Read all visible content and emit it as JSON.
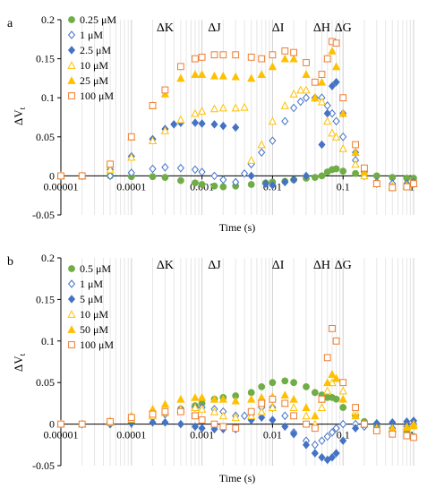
{
  "chart_data": [
    {
      "panel_label": "a",
      "type": "scatter",
      "xscale": "log",
      "xlim": [
        1e-05,
        1
      ],
      "ylim": [
        -0.05,
        0.2
      ],
      "xlabel": "Time (s)",
      "ylabel": "ΔV",
      "ylabel_sub": "t",
      "x_tick_labels": [
        "0.00001",
        "0.0001",
        "0.001",
        "0.01",
        "0.1",
        "1"
      ],
      "y_tick_labels": [
        "-0.05",
        "0",
        "0.05",
        "0.1",
        "0.15",
        "0.2"
      ],
      "y_ticks": [
        -0.05,
        0,
        0.05,
        0.1,
        0.15,
        0.2
      ],
      "grid": "vertical-minor",
      "legend_position": "top-left",
      "phase_labels": [
        {
          "text": "ΔK",
          "x": 0.0003
        },
        {
          "text": "ΔJ",
          "x": 0.0015
        },
        {
          "text": "ΔI",
          "x": 0.012
        },
        {
          "text": "ΔH",
          "x": 0.05
        },
        {
          "text": "ΔG",
          "x": 0.1
        }
      ],
      "series": [
        {
          "name": "0.25 μM",
          "marker": "circle",
          "color": "#70ad47",
          "fill": "#70ad47",
          "x": [
            1e-05,
            2e-05,
            5e-05,
            0.0001,
            0.0002,
            0.0003,
            0.0005,
            0.0008,
            0.001,
            0.0015,
            0.002,
            0.003,
            0.005,
            0.008,
            0.01,
            0.015,
            0.02,
            0.03,
            0.04,
            0.05,
            0.06,
            0.07,
            0.08,
            0.1,
            0.15,
            0.2,
            0.3,
            0.5,
            0.8,
            1
          ],
          "y": [
            0,
            0,
            0,
            -0.001,
            -0.001,
            -0.002,
            -0.006,
            -0.009,
            -0.011,
            -0.013,
            -0.014,
            -0.013,
            -0.011,
            -0.009,
            -0.008,
            -0.007,
            -0.005,
            -0.003,
            -0.002,
            0,
            0.005,
            0.008,
            0.009,
            0.006,
            0.003,
            0.001,
            0,
            -0.002,
            -0.003,
            -0.003
          ]
        },
        {
          "name": "1 μM",
          "marker": "diamond-open",
          "color": "#4472c4",
          "fill": "none",
          "x": [
            1e-05,
            2e-05,
            5e-05,
            0.0001,
            0.0002,
            0.0003,
            0.0005,
            0.0008,
            0.001,
            0.0015,
            0.002,
            0.003,
            0.004,
            0.005,
            0.007,
            0.01,
            0.015,
            0.02,
            0.025,
            0.03,
            0.04,
            0.05,
            0.06,
            0.07,
            0.08,
            0.1,
            0.15,
            0.2,
            0.3,
            0.5,
            0.8,
            1
          ],
          "y": [
            0,
            0,
            0,
            0.004,
            0.009,
            0.011,
            0.01,
            0.008,
            0.005,
            0.0,
            -0.005,
            -0.008,
            0.003,
            0.015,
            0.03,
            0.045,
            0.07,
            0.087,
            0.095,
            0.1,
            0.1,
            0.1,
            0.09,
            0.08,
            0.07,
            0.05,
            0.02,
            0.0,
            -0.008,
            -0.01,
            -0.01,
            -0.008
          ]
        },
        {
          "name": "2.5 μM",
          "marker": "diamond",
          "color": "#4472c4",
          "fill": "#4472c4",
          "x": [
            1e-05,
            2e-05,
            5e-05,
            0.0001,
            0.0002,
            0.0003,
            0.0004,
            0.0005,
            0.0008,
            0.001,
            0.0015,
            0.002,
            0.003,
            0.005,
            0.008,
            0.01,
            0.015,
            0.02,
            0.03,
            0.05,
            0.06,
            0.07,
            0.08,
            0.1,
            0.15,
            0.2,
            0.3,
            0.5,
            0.8,
            1
          ],
          "y": [
            0,
            0,
            0.008,
            0.025,
            0.047,
            0.06,
            0.066,
            0.068,
            0.068,
            0.067,
            0.066,
            0.064,
            0.062,
            0.0,
            -0.01,
            -0.012,
            -0.008,
            -0.005,
            0.0,
            0.04,
            0.08,
            0.115,
            0.12,
            0.08,
            0.03,
            0.005,
            -0.01,
            -0.014,
            -0.012,
            -0.01
          ]
        },
        {
          "name": "10 μM",
          "marker": "triangle-open",
          "color": "#ffc000",
          "fill": "none",
          "x": [
            1e-05,
            2e-05,
            5e-05,
            0.0001,
            0.0002,
            0.0003,
            0.0005,
            0.0008,
            0.001,
            0.0015,
            0.002,
            0.003,
            0.004,
            0.005,
            0.007,
            0.01,
            0.015,
            0.02,
            0.025,
            0.03,
            0.04,
            0.05,
            0.06,
            0.07,
            0.08,
            0.1,
            0.15,
            0.2,
            0.3,
            0.5,
            0.8,
            1
          ],
          "y": [
            0,
            0,
            0.008,
            0.024,
            0.045,
            0.058,
            0.072,
            0.08,
            0.083,
            0.086,
            0.087,
            0.087,
            0.088,
            0.02,
            0.04,
            0.07,
            0.09,
            0.105,
            0.11,
            0.11,
            0.1,
            0.095,
            0.07,
            0.055,
            0.05,
            0.035,
            0.015,
            0.0,
            -0.01,
            -0.013,
            -0.012,
            -0.01
          ]
        },
        {
          "name": "25 μM",
          "marker": "triangle",
          "color": "#ffc000",
          "fill": "#ffc000",
          "x": [
            1e-05,
            2e-05,
            5e-05,
            0.0001,
            0.0002,
            0.0003,
            0.0005,
            0.0008,
            0.001,
            0.0015,
            0.002,
            0.003,
            0.005,
            0.007,
            0.01,
            0.015,
            0.02,
            0.03,
            0.04,
            0.05,
            0.06,
            0.07,
            0.08,
            0.1,
            0.15,
            0.2,
            0.3,
            0.5,
            0.8,
            1
          ],
          "y": [
            0,
            0,
            0.015,
            0.05,
            0.09,
            0.105,
            0.125,
            0.13,
            0.13,
            0.128,
            0.128,
            0.127,
            0.125,
            0.13,
            0.14,
            0.15,
            0.15,
            0.13,
            0.1,
            0.12,
            0.15,
            0.16,
            0.14,
            0.08,
            0.03,
            0.005,
            -0.01,
            -0.015,
            -0.013,
            -0.01
          ]
        },
        {
          "name": "100 μM",
          "marker": "square-open",
          "color": "#ed7d31",
          "fill": "none",
          "x": [
            1e-05,
            2e-05,
            5e-05,
            0.0001,
            0.0002,
            0.0003,
            0.0005,
            0.0008,
            0.001,
            0.0015,
            0.002,
            0.003,
            0.005,
            0.007,
            0.01,
            0.015,
            0.02,
            0.03,
            0.04,
            0.05,
            0.06,
            0.07,
            0.08,
            0.1,
            0.15,
            0.2,
            0.3,
            0.5,
            0.8,
            1
          ],
          "y": [
            0,
            0,
            0.015,
            0.05,
            0.09,
            0.11,
            0.14,
            0.15,
            0.152,
            0.155,
            0.155,
            0.155,
            0.152,
            0.15,
            0.155,
            0.16,
            0.158,
            0.145,
            0.12,
            0.13,
            0.15,
            0.172,
            0.17,
            0.1,
            0.04,
            0.01,
            -0.01,
            -0.015,
            -0.014,
            -0.01
          ]
        }
      ]
    },
    {
      "panel_label": "b",
      "type": "scatter",
      "xscale": "log",
      "xlim": [
        1e-05,
        1
      ],
      "ylim": [
        -0.05,
        0.2
      ],
      "xlabel": "Time (s)",
      "ylabel": "ΔV",
      "ylabel_sub": "t",
      "x_tick_labels": [
        "0.00001",
        "0.0001",
        "0.001",
        "0.01",
        "0.1",
        "1"
      ],
      "y_tick_labels": [
        "-0.05",
        "0",
        "0.05",
        "0.1",
        "0.15",
        "0.2"
      ],
      "y_ticks": [
        -0.05,
        0,
        0.05,
        0.1,
        0.15,
        0.2
      ],
      "grid": "vertical-minor",
      "legend_position": "top-left",
      "phase_labels": [
        {
          "text": "ΔK",
          "x": 0.0003
        },
        {
          "text": "ΔJ",
          "x": 0.0015
        },
        {
          "text": "ΔI",
          "x": 0.012
        },
        {
          "text": "ΔH",
          "x": 0.05
        },
        {
          "text": "ΔG",
          "x": 0.1
        }
      ],
      "series": [
        {
          "name": "0.5 μM",
          "marker": "circle",
          "color": "#70ad47",
          "fill": "#70ad47",
          "x": [
            1e-05,
            2e-05,
            5e-05,
            0.0001,
            0.0002,
            0.0003,
            0.0005,
            0.0008,
            0.001,
            0.0015,
            0.002,
            0.003,
            0.005,
            0.007,
            0.01,
            0.015,
            0.02,
            0.03,
            0.04,
            0.05,
            0.06,
            0.07,
            0.08,
            0.1,
            0.15,
            0.2,
            0.3,
            0.5,
            0.8,
            1
          ],
          "y": [
            0,
            0,
            0.002,
            0.006,
            0.01,
            0.013,
            0.018,
            0.022,
            0.025,
            0.03,
            0.032,
            0.034,
            0.038,
            0.045,
            0.05,
            0.052,
            0.05,
            0.045,
            0.038,
            0.035,
            0.032,
            0.032,
            0.03,
            0.02,
            0.01,
            0.003,
            -0.003,
            -0.008,
            -0.01,
            -0.015
          ]
        },
        {
          "name": "1 μM",
          "marker": "diamond-open",
          "color": "#4472c4",
          "fill": "none",
          "x": [
            1e-05,
            2e-05,
            5e-05,
            0.0001,
            0.0002,
            0.0003,
            0.0005,
            0.0008,
            0.001,
            0.0015,
            0.002,
            0.003,
            0.004,
            0.005,
            0.007,
            0.01,
            0.015,
            0.02,
            0.03,
            0.04,
            0.05,
            0.06,
            0.07,
            0.08,
            0.1,
            0.15,
            0.2,
            0.3,
            0.5,
            0.8,
            1
          ],
          "y": [
            0,
            0,
            0,
            0.003,
            0.008,
            0.012,
            0.018,
            0.02,
            0.02,
            0.018,
            0.015,
            0.01,
            0.01,
            0.012,
            0.02,
            0.02,
            0.01,
            -0.01,
            -0.02,
            -0.025,
            -0.02,
            -0.015,
            -0.01,
            -0.005,
            0.0,
            0.0,
            -0.003,
            -0.005,
            -0.005,
            -0.003,
            0
          ]
        },
        {
          "name": "5 μM",
          "marker": "diamond",
          "color": "#4472c4",
          "fill": "#4472c4",
          "x": [
            1e-05,
            2e-05,
            5e-05,
            0.0001,
            0.0002,
            0.0003,
            0.0005,
            0.0008,
            0.001,
            0.0015,
            0.002,
            0.003,
            0.005,
            0.007,
            0.01,
            0.015,
            0.02,
            0.03,
            0.04,
            0.05,
            0.06,
            0.07,
            0.08,
            0.1,
            0.15,
            0.2,
            0.3,
            0.5,
            0.8,
            1
          ],
          "y": [
            0,
            0,
            0,
            0.001,
            0.002,
            0.002,
            0.0,
            -0.003,
            -0.005,
            -0.006,
            -0.006,
            -0.006,
            0.005,
            0.008,
            0.005,
            -0.003,
            -0.012,
            -0.025,
            -0.035,
            -0.04,
            -0.043,
            -0.04,
            -0.035,
            -0.02,
            -0.005,
            0.0,
            0.001,
            0.002,
            0.003,
            0.004
          ]
        },
        {
          "name": "10 μM",
          "marker": "triangle-open",
          "color": "#ffc000",
          "fill": "none",
          "x": [
            1e-05,
            2e-05,
            5e-05,
            0.0001,
            0.0002,
            0.0003,
            0.0005,
            0.0008,
            0.001,
            0.0015,
            0.002,
            0.003,
            0.005,
            0.007,
            0.01,
            0.015,
            0.02,
            0.03,
            0.04,
            0.05,
            0.06,
            0.07,
            0.08,
            0.1,
            0.15,
            0.2,
            0.3,
            0.5,
            0.8,
            1
          ],
          "y": [
            0,
            0,
            0.002,
            0.006,
            0.01,
            0.014,
            0.018,
            0.02,
            0.018,
            0.015,
            0.01,
            0.008,
            0.01,
            0.015,
            0.02,
            0.025,
            0.02,
            0.01,
            0.0,
            0.02,
            0.04,
            0.05,
            0.055,
            0.04,
            0.015,
            0.0,
            -0.005,
            -0.005,
            -0.003,
            0.0
          ]
        },
        {
          "name": "50 μM",
          "marker": "triangle",
          "color": "#ffc000",
          "fill": "#ffc000",
          "x": [
            1e-05,
            2e-05,
            5e-05,
            0.0001,
            0.0002,
            0.0003,
            0.0005,
            0.0008,
            0.001,
            0.0015,
            0.002,
            0.003,
            0.005,
            0.007,
            0.01,
            0.015,
            0.02,
            0.03,
            0.04,
            0.05,
            0.06,
            0.07,
            0.08,
            0.1,
            0.15,
            0.2,
            0.3,
            0.5,
            0.8,
            1
          ],
          "y": [
            0,
            0,
            0.004,
            0.01,
            0.018,
            0.024,
            0.03,
            0.032,
            0.032,
            0.03,
            0.03,
            0.028,
            0.03,
            0.032,
            0.033,
            0.035,
            0.03,
            0.02,
            0.01,
            0.03,
            0.05,
            0.06,
            0.055,
            0.03,
            0.01,
            0.0,
            -0.005,
            -0.006,
            -0.004,
            -0.002
          ]
        },
        {
          "name": "100 μM",
          "marker": "square-open",
          "color": "#ed7d31",
          "fill": "none",
          "x": [
            1e-05,
            2e-05,
            5e-05,
            0.0001,
            0.0002,
            0.0003,
            0.0005,
            0.0008,
            0.001,
            0.0015,
            0.002,
            0.003,
            0.005,
            0.007,
            0.01,
            0.015,
            0.02,
            0.03,
            0.04,
            0.05,
            0.06,
            0.07,
            0.08,
            0.1,
            0.15,
            0.2,
            0.3,
            0.5,
            0.8,
            1
          ],
          "y": [
            0,
            0,
            0.003,
            0.008,
            0.012,
            0.015,
            0.015,
            0.01,
            0.005,
            0.0,
            -0.003,
            -0.005,
            0.015,
            0.025,
            0.03,
            0.025,
            0.01,
            0.0,
            -0.005,
            0.03,
            0.08,
            0.115,
            0.1,
            0.05,
            0.02,
            0.0,
            -0.008,
            -0.012,
            -0.014,
            -0.016
          ]
        }
      ]
    }
  ]
}
